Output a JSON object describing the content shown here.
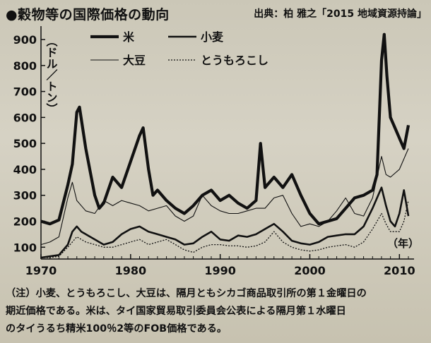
{
  "header": {
    "title": "●穀物等の国際価格の動向",
    "source": "出典：柏 雅之「2015 地域資源持論」"
  },
  "colors": {
    "background": "#c9c4b3",
    "ink": "#111111"
  },
  "chart_data": {
    "type": "line",
    "ylabel": "（ドル／トン）",
    "xunit": "（年）",
    "xlim": [
      1970,
      2011
    ],
    "ylim": [
      60,
      930
    ],
    "yticks": [
      100,
      200,
      300,
      400,
      500,
      600,
      700,
      800,
      900
    ],
    "xticks": [
      1970,
      1980,
      1990,
      2000,
      2010
    ],
    "grid": false,
    "legend": "top-center",
    "series": [
      {
        "name": "米",
        "style": "thick",
        "points": [
          [
            1970,
            200
          ],
          [
            1971,
            190
          ],
          [
            1972,
            205
          ],
          [
            1973,
            340
          ],
          [
            1973.5,
            420
          ],
          [
            1974,
            620
          ],
          [
            1974.3,
            640
          ],
          [
            1975,
            480
          ],
          [
            1976,
            300
          ],
          [
            1976.5,
            250
          ],
          [
            1977,
            270
          ],
          [
            1978,
            370
          ],
          [
            1979,
            330
          ],
          [
            1980,
            430
          ],
          [
            1981,
            530
          ],
          [
            1981.4,
            560
          ],
          [
            1982,
            400
          ],
          [
            1982.5,
            300
          ],
          [
            1983,
            320
          ],
          [
            1984,
            280
          ],
          [
            1985,
            250
          ],
          [
            1986,
            230
          ],
          [
            1987,
            260
          ],
          [
            1988,
            300
          ],
          [
            1989,
            320
          ],
          [
            1990,
            280
          ],
          [
            1991,
            300
          ],
          [
            1992,
            270
          ],
          [
            1993,
            250
          ],
          [
            1994,
            280
          ],
          [
            1994.5,
            500
          ],
          [
            1995,
            330
          ],
          [
            1996,
            370
          ],
          [
            1997,
            330
          ],
          [
            1998,
            380
          ],
          [
            1999,
            300
          ],
          [
            2000,
            230
          ],
          [
            2001,
            190
          ],
          [
            2002,
            200
          ],
          [
            2003,
            210
          ],
          [
            2004,
            250
          ],
          [
            2005,
            290
          ],
          [
            2006,
            300
          ],
          [
            2007,
            320
          ],
          [
            2007.5,
            380
          ],
          [
            2008,
            820
          ],
          [
            2008.3,
            920
          ],
          [
            2008.6,
            760
          ],
          [
            2009,
            600
          ],
          [
            2009.5,
            560
          ],
          [
            2010,
            520
          ],
          [
            2010.5,
            480
          ],
          [
            2011,
            570
          ]
        ]
      },
      {
        "name": "小麦",
        "style": "medium",
        "points": [
          [
            1970,
            60
          ],
          [
            1971,
            65
          ],
          [
            1972,
            70
          ],
          [
            1973,
            110
          ],
          [
            1973.5,
            160
          ],
          [
            1974,
            180
          ],
          [
            1974.5,
            160
          ],
          [
            1975,
            150
          ],
          [
            1976,
            130
          ],
          [
            1977,
            110
          ],
          [
            1978,
            120
          ],
          [
            1979,
            150
          ],
          [
            1980,
            170
          ],
          [
            1981,
            180
          ],
          [
            1982,
            160
          ],
          [
            1983,
            150
          ],
          [
            1984,
            140
          ],
          [
            1985,
            130
          ],
          [
            1986,
            110
          ],
          [
            1987,
            115
          ],
          [
            1988,
            140
          ],
          [
            1989,
            160
          ],
          [
            1990,
            130
          ],
          [
            1991,
            125
          ],
          [
            1992,
            145
          ],
          [
            1993,
            140
          ],
          [
            1994,
            150
          ],
          [
            1995,
            170
          ],
          [
            1996,
            190
          ],
          [
            1997,
            160
          ],
          [
            1998,
            125
          ],
          [
            1999,
            115
          ],
          [
            2000,
            110
          ],
          [
            2001,
            120
          ],
          [
            2002,
            140
          ],
          [
            2003,
            145
          ],
          [
            2004,
            150
          ],
          [
            2005,
            150
          ],
          [
            2006,
            180
          ],
          [
            2007,
            250
          ],
          [
            2008,
            330
          ],
          [
            2008.5,
            260
          ],
          [
            2009,
            200
          ],
          [
            2009.5,
            180
          ],
          [
            2010,
            230
          ],
          [
            2010.5,
            320
          ],
          [
            2011,
            220
          ]
        ]
      },
      {
        "name": "大豆",
        "style": "thin",
        "points": [
          [
            1970,
            110
          ],
          [
            1971,
            120
          ],
          [
            1972,
            140
          ],
          [
            1973,
            290
          ],
          [
            1973.5,
            350
          ],
          [
            1974,
            280
          ],
          [
            1975,
            240
          ],
          [
            1976,
            230
          ],
          [
            1977,
            280
          ],
          [
            1978,
            260
          ],
          [
            1979,
            280
          ],
          [
            1980,
            270
          ],
          [
            1981,
            260
          ],
          [
            1982,
            240
          ],
          [
            1983,
            250
          ],
          [
            1984,
            260
          ],
          [
            1985,
            220
          ],
          [
            1986,
            200
          ],
          [
            1987,
            220
          ],
          [
            1988,
            300
          ],
          [
            1989,
            260
          ],
          [
            1990,
            240
          ],
          [
            1991,
            230
          ],
          [
            1992,
            230
          ],
          [
            1993,
            240
          ],
          [
            1994,
            250
          ],
          [
            1995,
            250
          ],
          [
            1996,
            290
          ],
          [
            1997,
            300
          ],
          [
            1998,
            230
          ],
          [
            1999,
            180
          ],
          [
            2000,
            190
          ],
          [
            2001,
            180
          ],
          [
            2002,
            200
          ],
          [
            2003,
            240
          ],
          [
            2004,
            290
          ],
          [
            2005,
            230
          ],
          [
            2006,
            220
          ],
          [
            2007,
            290
          ],
          [
            2008,
            450
          ],
          [
            2008.5,
            380
          ],
          [
            2009,
            370
          ],
          [
            2010,
            400
          ],
          [
            2011,
            480
          ]
        ]
      },
      {
        "name": "とうもろこし",
        "style": "dotted",
        "points": [
          [
            1970,
            60
          ],
          [
            1971,
            60
          ],
          [
            1972,
            65
          ],
          [
            1973,
            100
          ],
          [
            1974,
            140
          ],
          [
            1975,
            120
          ],
          [
            1976,
            110
          ],
          [
            1977,
            100
          ],
          [
            1978,
            100
          ],
          [
            1979,
            110
          ],
          [
            1980,
            120
          ],
          [
            1981,
            130
          ],
          [
            1982,
            110
          ],
          [
            1983,
            120
          ],
          [
            1984,
            130
          ],
          [
            1985,
            110
          ],
          [
            1986,
            90
          ],
          [
            1987,
            80
          ],
          [
            1988,
            100
          ],
          [
            1989,
            110
          ],
          [
            1990,
            110
          ],
          [
            1991,
            105
          ],
          [
            1992,
            105
          ],
          [
            1993,
            100
          ],
          [
            1994,
            105
          ],
          [
            1995,
            120
          ],
          [
            1996,
            160
          ],
          [
            1997,
            120
          ],
          [
            1998,
            100
          ],
          [
            1999,
            90
          ],
          [
            2000,
            85
          ],
          [
            2001,
            90
          ],
          [
            2002,
            100
          ],
          [
            2003,
            105
          ],
          [
            2004,
            110
          ],
          [
            2005,
            100
          ],
          [
            2006,
            120
          ],
          [
            2007,
            170
          ],
          [
            2008,
            230
          ],
          [
            2008.5,
            190
          ],
          [
            2009,
            160
          ],
          [
            2010,
            160
          ],
          [
            2010.5,
            200
          ],
          [
            2011,
            280
          ]
        ]
      }
    ]
  },
  "note": {
    "lines": [
      "（注）小麦、とうもろこし、大豆は、隔月ともシカゴ商品取引所の第１金曜日の",
      "期近価格である。米は、タイ国家貿易取引委員会公表による隔月第１水曜日",
      "のタイうるち精米100％2等のFOB価格である。"
    ]
  }
}
